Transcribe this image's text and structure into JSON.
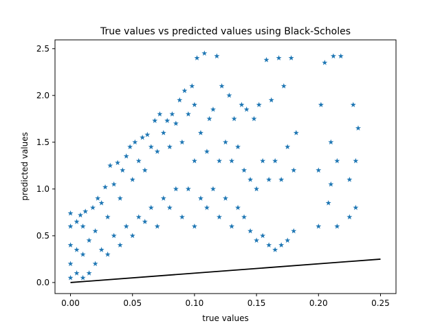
{
  "chart_data": {
    "type": "scatter",
    "title": "True values vs predicted values using Black-Scholes",
    "xlabel": "true values",
    "ylabel": "predicted values",
    "xlim": [
      -0.0125,
      0.2625
    ],
    "ylim": [
      -0.118,
      2.594
    ],
    "xticks": [
      0.0,
      0.05,
      0.1,
      0.15,
      0.2,
      0.25
    ],
    "xtick_labels": [
      "0.00",
      "0.05",
      "0.10",
      "0.15",
      "0.20",
      "0.25"
    ],
    "yticks": [
      0.0,
      0.5,
      1.0,
      1.5,
      2.0,
      2.5
    ],
    "ytick_labels": [
      "0.0",
      "0.5",
      "1.0",
      "1.5",
      "2.0",
      "2.5"
    ],
    "grid": false,
    "colors": {
      "points": "#1f77b4",
      "line": "#000000"
    },
    "marker": "star",
    "series": [
      {
        "kind": "scatter",
        "points": [
          [
            0.0,
            0.05
          ],
          [
            0.0,
            0.2
          ],
          [
            0.0,
            0.4
          ],
          [
            0.0,
            0.6
          ],
          [
            0.0,
            0.74
          ],
          [
            0.005,
            0.1
          ],
          [
            0.005,
            0.35
          ],
          [
            0.005,
            0.65
          ],
          [
            0.008,
            0.72
          ],
          [
            0.01,
            0.05
          ],
          [
            0.01,
            0.3
          ],
          [
            0.01,
            0.6
          ],
          [
            0.012,
            0.76
          ],
          [
            0.015,
            0.1
          ],
          [
            0.015,
            0.45
          ],
          [
            0.018,
            0.8
          ],
          [
            0.02,
            0.2
          ],
          [
            0.02,
            0.55
          ],
          [
            0.022,
            0.9
          ],
          [
            0.025,
            0.35
          ],
          [
            0.025,
            0.85
          ],
          [
            0.028,
            1.02
          ],
          [
            0.03,
            0.3
          ],
          [
            0.03,
            0.7
          ],
          [
            0.032,
            1.25
          ],
          [
            0.035,
            0.5
          ],
          [
            0.035,
            1.05
          ],
          [
            0.038,
            1.28
          ],
          [
            0.04,
            0.4
          ],
          [
            0.04,
            0.9
          ],
          [
            0.042,
            1.2
          ],
          [
            0.045,
            0.6
          ],
          [
            0.045,
            1.35
          ],
          [
            0.048,
            1.45
          ],
          [
            0.05,
            0.5
          ],
          [
            0.05,
            1.1
          ],
          [
            0.052,
            1.5
          ],
          [
            0.055,
            0.7
          ],
          [
            0.055,
            1.3
          ],
          [
            0.058,
            1.55
          ],
          [
            0.06,
            0.65
          ],
          [
            0.06,
            1.2
          ],
          [
            0.062,
            1.58
          ],
          [
            0.065,
            0.8
          ],
          [
            0.065,
            1.45
          ],
          [
            0.068,
            1.73
          ],
          [
            0.07,
            0.6
          ],
          [
            0.07,
            1.4
          ],
          [
            0.072,
            1.8
          ],
          [
            0.075,
            0.9
          ],
          [
            0.075,
            1.6
          ],
          [
            0.078,
            1.73
          ],
          [
            0.08,
            0.8
          ],
          [
            0.08,
            1.45
          ],
          [
            0.082,
            1.8
          ],
          [
            0.085,
            1.0
          ],
          [
            0.085,
            1.7
          ],
          [
            0.088,
            1.95
          ],
          [
            0.09,
            0.7
          ],
          [
            0.09,
            1.5
          ],
          [
            0.092,
            2.05
          ],
          [
            0.095,
            1.0
          ],
          [
            0.095,
            1.8
          ],
          [
            0.098,
            2.1
          ],
          [
            0.1,
            0.6
          ],
          [
            0.1,
            1.3
          ],
          [
            0.1,
            1.9
          ],
          [
            0.102,
            2.4
          ],
          [
            0.105,
            0.9
          ],
          [
            0.105,
            1.6
          ],
          [
            0.108,
            2.45
          ],
          [
            0.11,
            0.8
          ],
          [
            0.11,
            1.4
          ],
          [
            0.112,
            1.75
          ],
          [
            0.115,
            1.0
          ],
          [
            0.115,
            1.85
          ],
          [
            0.118,
            2.42
          ],
          [
            0.12,
            0.7
          ],
          [
            0.12,
            1.3
          ],
          [
            0.122,
            2.1
          ],
          [
            0.125,
            0.9
          ],
          [
            0.125,
            1.5
          ],
          [
            0.128,
            2.0
          ],
          [
            0.13,
            0.6
          ],
          [
            0.13,
            1.3
          ],
          [
            0.132,
            1.75
          ],
          [
            0.135,
            0.8
          ],
          [
            0.135,
            1.45
          ],
          [
            0.138,
            1.9
          ],
          [
            0.14,
            0.7
          ],
          [
            0.14,
            1.2
          ],
          [
            0.142,
            1.85
          ],
          [
            0.145,
            0.55
          ],
          [
            0.145,
            1.1
          ],
          [
            0.148,
            1.75
          ],
          [
            0.15,
            0.45
          ],
          [
            0.15,
            1.0
          ],
          [
            0.152,
            1.9
          ],
          [
            0.155,
            0.5
          ],
          [
            0.155,
            1.3
          ],
          [
            0.158,
            2.38
          ],
          [
            0.16,
            0.4
          ],
          [
            0.16,
            1.1
          ],
          [
            0.162,
            1.95
          ],
          [
            0.165,
            0.35
          ],
          [
            0.165,
            1.3
          ],
          [
            0.168,
            2.4
          ],
          [
            0.17,
            0.4
          ],
          [
            0.17,
            1.1
          ],
          [
            0.172,
            2.1
          ],
          [
            0.175,
            0.45
          ],
          [
            0.175,
            1.45
          ],
          [
            0.178,
            2.4
          ],
          [
            0.18,
            0.55
          ],
          [
            0.18,
            1.2
          ],
          [
            0.182,
            1.6
          ],
          [
            0.2,
            0.6
          ],
          [
            0.2,
            1.2
          ],
          [
            0.202,
            1.9
          ],
          [
            0.205,
            2.35
          ],
          [
            0.208,
            0.85
          ],
          [
            0.21,
            1.05
          ],
          [
            0.21,
            1.5
          ],
          [
            0.212,
            2.42
          ],
          [
            0.215,
            0.6
          ],
          [
            0.215,
            1.3
          ],
          [
            0.218,
            2.42
          ],
          [
            0.225,
            0.7
          ],
          [
            0.225,
            1.1
          ],
          [
            0.228,
            1.9
          ],
          [
            0.23,
            0.8
          ],
          [
            0.23,
            1.3
          ],
          [
            0.232,
            1.65
          ]
        ]
      },
      {
        "kind": "line",
        "points": [
          [
            0.0,
            0.0
          ],
          [
            0.25,
            0.25
          ]
        ]
      }
    ]
  }
}
